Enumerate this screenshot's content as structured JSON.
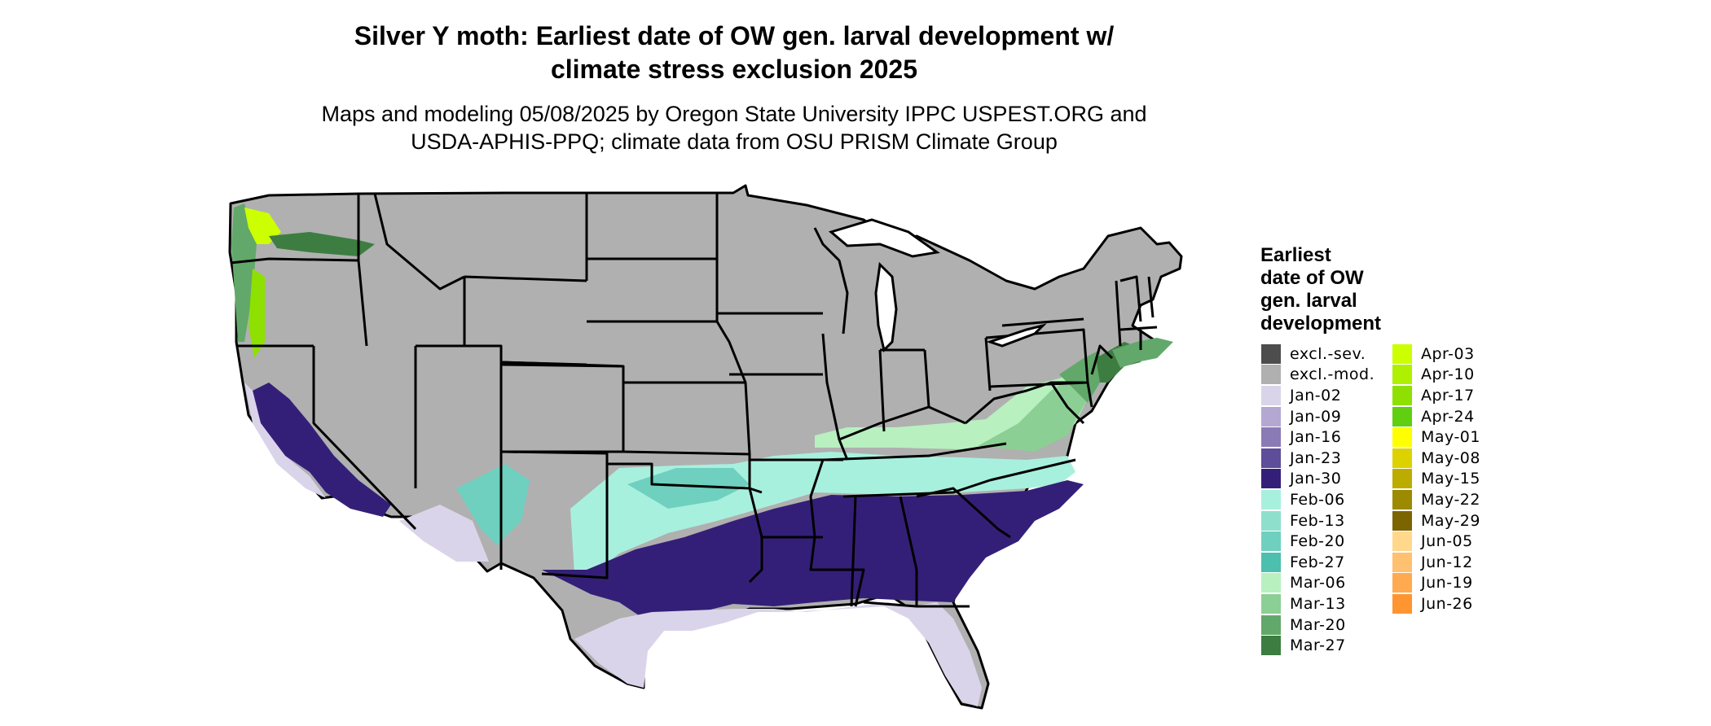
{
  "title_line1": "Silver Y moth: Earliest date of OW gen. larval development w/",
  "title_line2": "climate stress exclusion 2025",
  "subtitle_line1": "Maps and modeling 05/08/2025 by Oregon State University IPPC USPEST.ORG and",
  "subtitle_line2": "USDA-APHIS-PPQ; climate data from OSU PRISM Climate Group",
  "legend": {
    "title_lines": [
      "Earliest",
      "date of OW",
      "gen. larval",
      "development"
    ],
    "column1": [
      {
        "label": "excl.-sev.",
        "color": "#4d4d4d"
      },
      {
        "label": "excl.-mod.",
        "color": "#b0b0b0"
      },
      {
        "label": "Jan-02",
        "color": "#dad4ea"
      },
      {
        "label": "Jan-09",
        "color": "#b4a8d2"
      },
      {
        "label": "Jan-16",
        "color": "#8a7bb6"
      },
      {
        "label": "Jan-23",
        "color": "#5e4d98"
      },
      {
        "label": "Jan-30",
        "color": "#341f78"
      },
      {
        "label": "Feb-06",
        "color": "#a8f0de"
      },
      {
        "label": "Feb-13",
        "color": "#8ee0cc"
      },
      {
        "label": "Feb-20",
        "color": "#6fd0bf"
      },
      {
        "label": "Feb-27",
        "color": "#4dbfae"
      },
      {
        "label": "Mar-06",
        "color": "#b8f0c0"
      },
      {
        "label": "Mar-13",
        "color": "#8ccf94"
      },
      {
        "label": "Mar-20",
        "color": "#62a86a"
      },
      {
        "label": "Mar-27",
        "color": "#3d7d42"
      }
    ],
    "column2": [
      {
        "label": "Apr-03",
        "color": "#ccff00"
      },
      {
        "label": "Apr-10",
        "color": "#aef000"
      },
      {
        "label": "Apr-17",
        "color": "#8ee000"
      },
      {
        "label": "Apr-24",
        "color": "#5fcf10"
      },
      {
        "label": "May-01",
        "color": "#ffff00"
      },
      {
        "label": "May-08",
        "color": "#dcd200"
      },
      {
        "label": "May-15",
        "color": "#bcac00"
      },
      {
        "label": "May-22",
        "color": "#9c8a00"
      },
      {
        "label": "May-29",
        "color": "#7c6400"
      },
      {
        "label": "Jun-05",
        "color": "#ffd88c"
      },
      {
        "label": "Jun-12",
        "color": "#ffc070"
      },
      {
        "label": "Jun-19",
        "color": "#ffaa50"
      },
      {
        "label": "Jun-26",
        "color": "#ff9530"
      }
    ]
  },
  "map_colors": {
    "state_fill": "#b0b0b0",
    "border": "#000000"
  }
}
